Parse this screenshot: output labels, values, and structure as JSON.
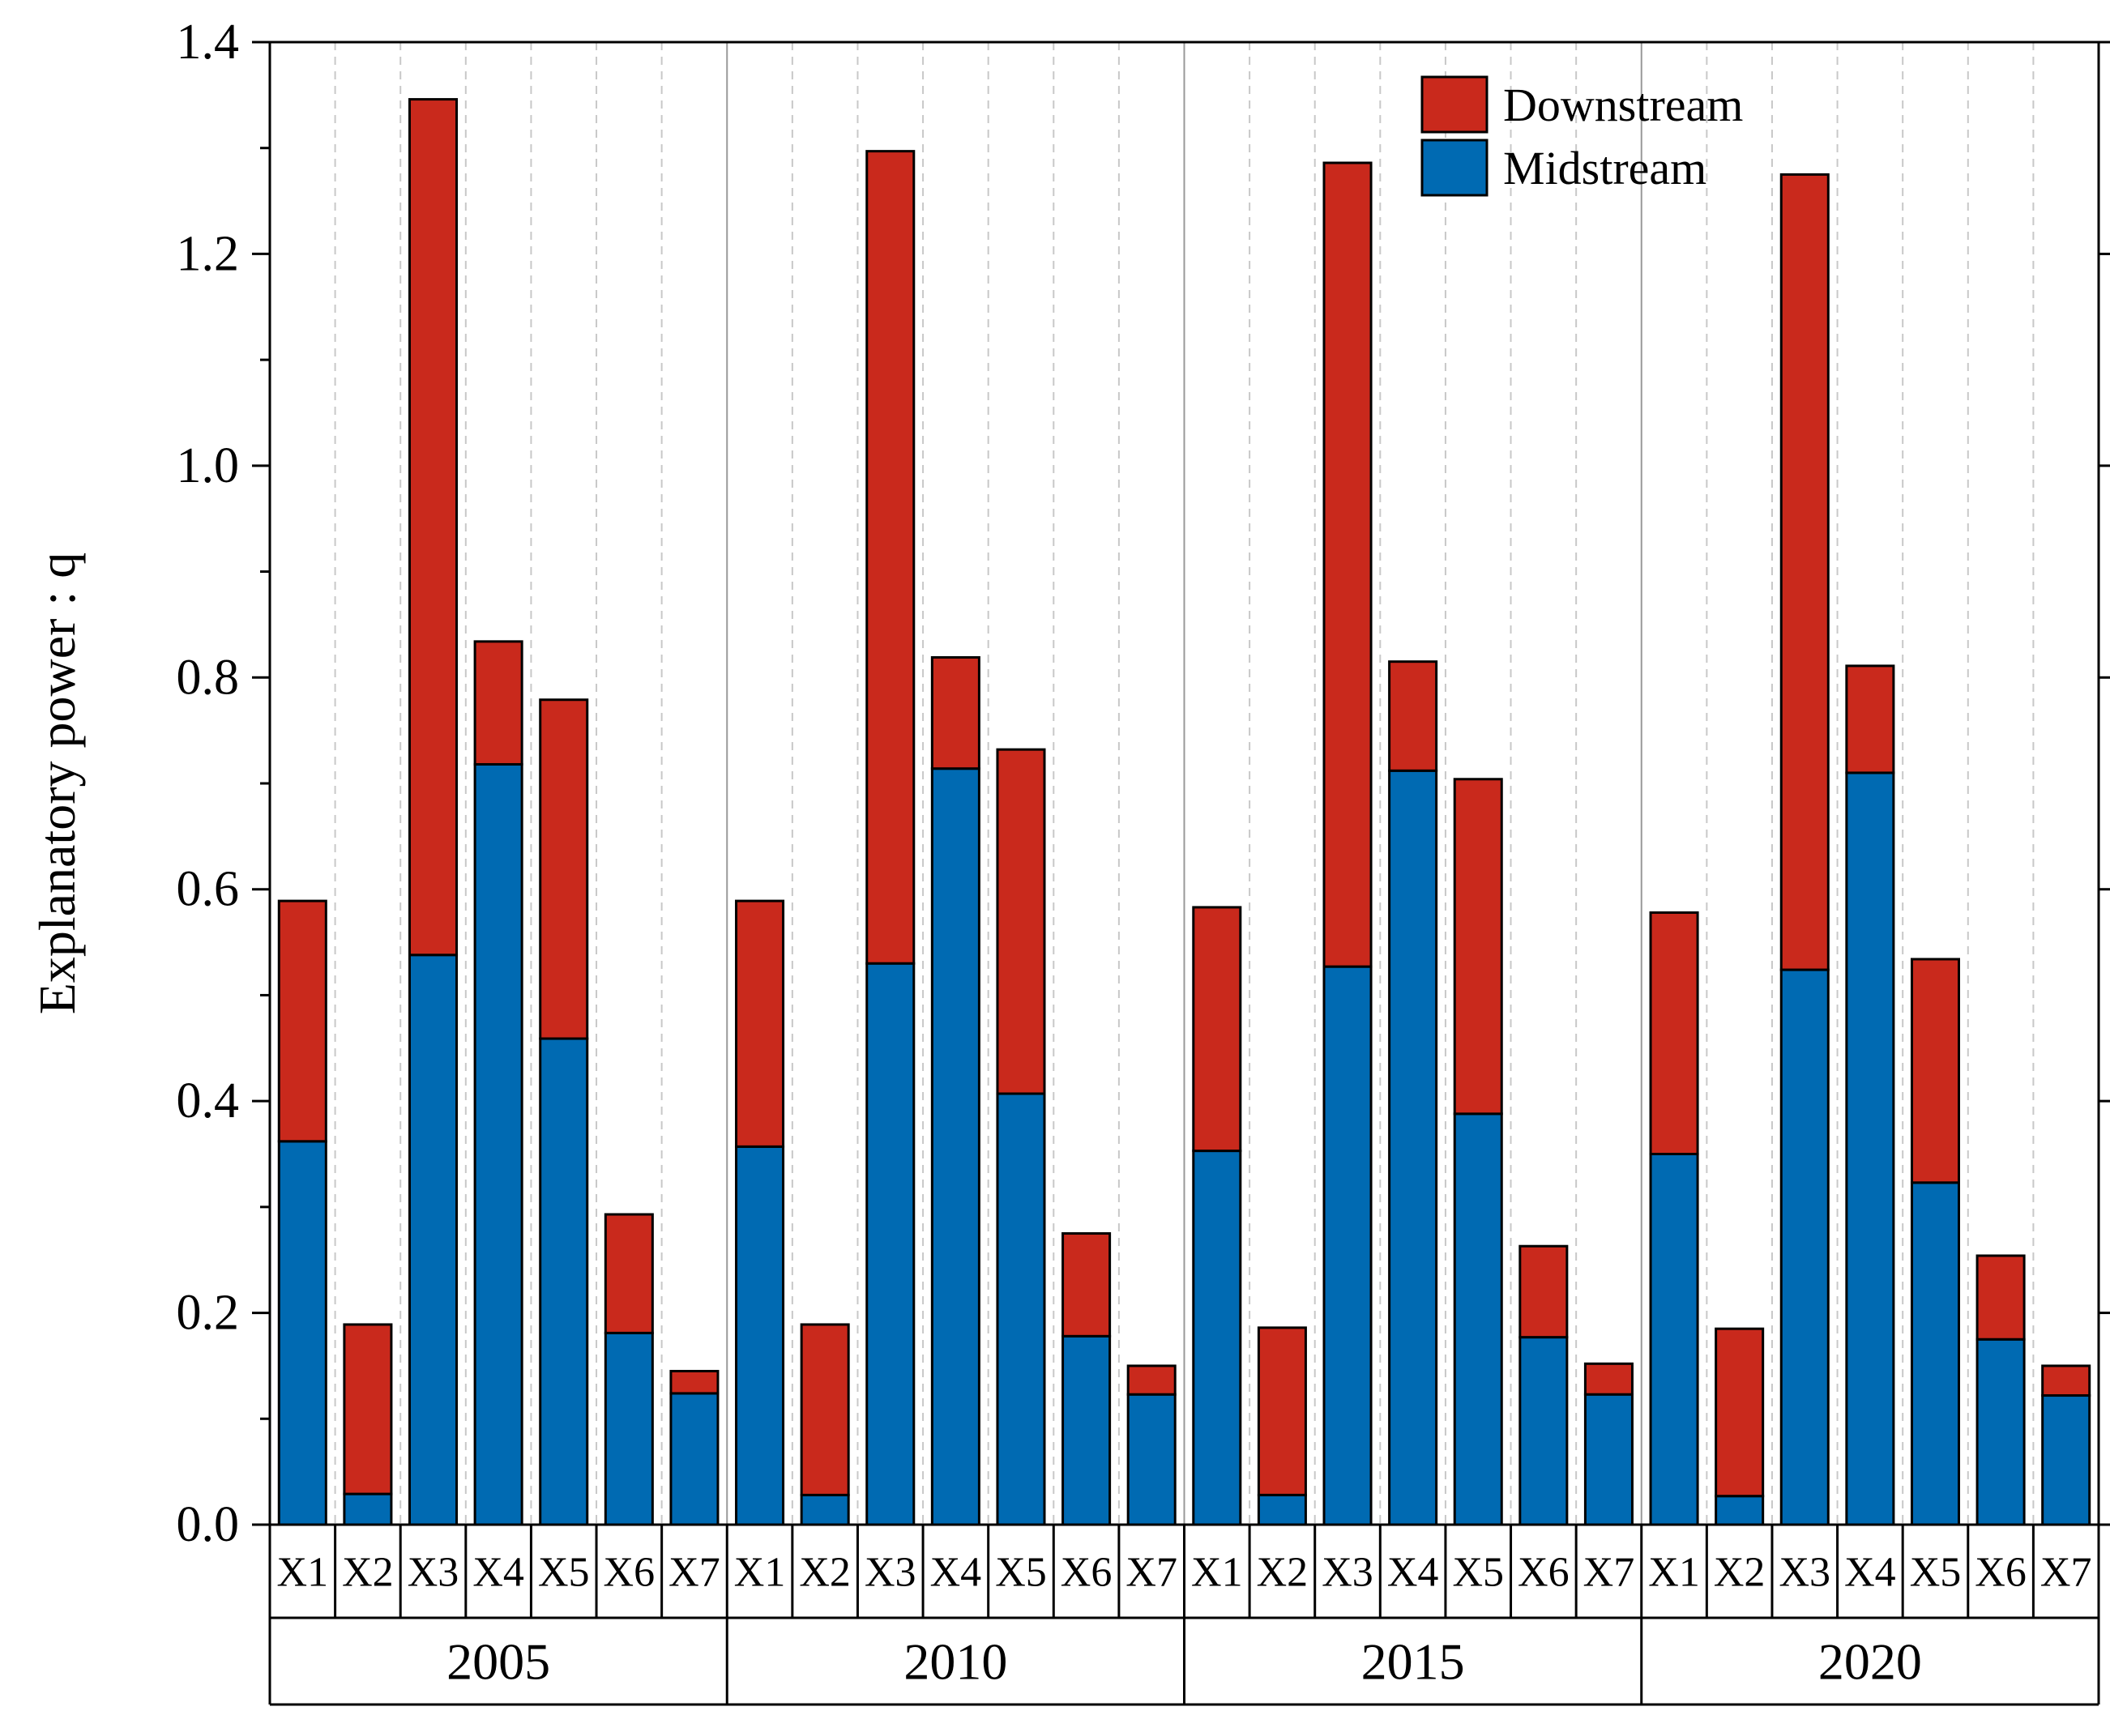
{
  "chart_data": {
    "type": "bar",
    "stacked": true,
    "ylabel": "Explanatory power : q",
    "xlabel": "",
    "ylim": [
      0,
      1.4
    ],
    "yticks": [
      "0.0",
      "0.2",
      "0.4",
      "0.6",
      "0.8",
      "1.0",
      "1.2",
      "1.4"
    ],
    "ytick_values": [
      0,
      0.2,
      0.4,
      0.6,
      0.8,
      1.0,
      1.2,
      1.4
    ],
    "groups": [
      "2005",
      "2010",
      "2015",
      "2020"
    ],
    "categories": [
      "X1",
      "X2",
      "X3",
      "X4",
      "X5",
      "X6",
      "X7"
    ],
    "legend_position": "top-right",
    "series": [
      {
        "name": "Midstream",
        "color": "#006ab2",
        "values": [
          [
            0.362,
            0.029,
            0.538,
            0.718,
            0.459,
            0.181,
            0.124
          ],
          [
            0.357,
            0.028,
            0.53,
            0.714,
            0.407,
            0.178,
            0.123
          ],
          [
            0.353,
            0.028,
            0.527,
            0.712,
            0.388,
            0.177,
            0.123
          ],
          [
            0.35,
            0.027,
            0.524,
            0.71,
            0.323,
            0.175,
            0.122
          ]
        ]
      },
      {
        "name": "Downstream",
        "color": "#c9291c",
        "values": [
          [
            0.227,
            0.16,
            0.808,
            0.116,
            0.32,
            0.112,
            0.021
          ],
          [
            0.232,
            0.161,
            0.767,
            0.105,
            0.325,
            0.097,
            0.027
          ],
          [
            0.23,
            0.158,
            0.759,
            0.103,
            0.316,
            0.086,
            0.029
          ],
          [
            0.228,
            0.158,
            0.751,
            0.101,
            0.211,
            0.079,
            0.028
          ]
        ]
      }
    ]
  }
}
